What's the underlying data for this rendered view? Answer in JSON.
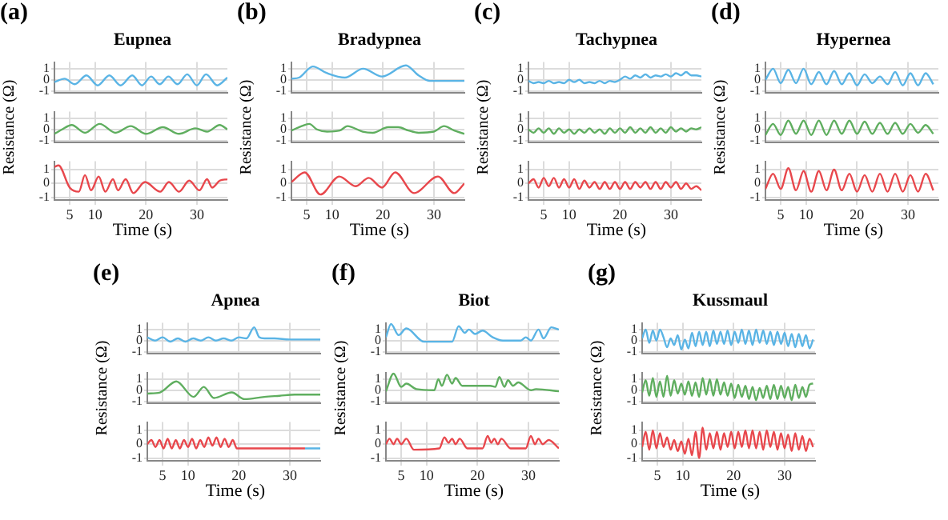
{
  "chart_data": [
    {
      "type": "line",
      "title": "Eupnea",
      "annotations": [
        "(a)"
      ],
      "x": [
        2,
        4,
        6,
        8.3,
        10.5,
        12.8,
        15,
        17.3,
        19.2,
        21,
        22.7,
        24.4,
        26.2,
        28.1,
        30,
        31.8,
        34,
        36
      ],
      "series": [
        {
          "color": "#5ab4e5",
          "values": [
            -0.2,
            0.1,
            -0.4,
            0.4,
            -0.5,
            0.4,
            -0.5,
            0.4,
            -0.5,
            0.3,
            -0.4,
            0.3,
            -0.4,
            0.5,
            -0.5,
            0.5,
            -0.5,
            0.2
          ]
        }
      ],
      "xlim": [
        2,
        36
      ],
      "xticks": [
        5,
        10,
        20,
        30
      ],
      "ylim": [
        -1.2,
        1.6
      ],
      "yticks": [
        -1,
        0,
        1
      ],
      "grid": true,
      "tick_labels": "y"
    },
    {
      "type": "line",
      "ylabel": "Resistance (Ω)",
      "x": [
        2,
        3.5,
        5.4,
        8,
        10.9,
        14,
        17,
        20,
        23.3,
        26.5,
        29.7,
        32,
        34.5,
        36
      ],
      "series": [
        {
          "color": "#5fae5f",
          "values": [
            -0.4,
            0,
            0.4,
            -0.3,
            0.5,
            -0.3,
            0.3,
            -0.4,
            0.2,
            -0.4,
            0.1,
            -0.2,
            0.4,
            0
          ]
        }
      ],
      "xlim": [
        2,
        36
      ],
      "xticks": [
        5,
        10,
        20,
        30
      ],
      "ylim": [
        -1.2,
        1.6
      ],
      "yticks": [
        -1,
        0,
        1
      ],
      "grid": true,
      "tick_labels": "y"
    },
    {
      "type": "line",
      "xlabel": "Time (s)",
      "x": [
        2,
        2.8,
        5,
        6.8,
        8,
        9.2,
        10.7,
        12,
        13.5,
        14.5,
        16,
        17.5,
        19.8,
        22.8,
        24.5,
        26.5,
        28.5,
        30.5,
        32,
        33,
        34.5,
        36
      ],
      "series": [
        {
          "color": "#e8474c",
          "values": [
            1.2,
            1.3,
            -0.3,
            -0.6,
            0.6,
            -0.5,
            0.5,
            -0.6,
            0.3,
            -0.5,
            0.3,
            -0.7,
            0.1,
            -0.6,
            0.1,
            -0.6,
            0.2,
            -0.5,
            0.3,
            -0.3,
            0.2,
            0.3
          ]
        }
      ],
      "xlim": [
        2,
        36
      ],
      "xticks": [
        5,
        10,
        20,
        30
      ],
      "ylim": [
        -1.2,
        1.6
      ],
      "yticks": [
        -1,
        0,
        1
      ],
      "grid": true
    },
    {
      "type": "line",
      "title": "Bradypnea",
      "annotations": [
        "(b)"
      ],
      "x": [
        2,
        3.5,
        6.2,
        9,
        12.5,
        16.1,
        19.8,
        24.5,
        27,
        29.2,
        32,
        36
      ],
      "series": [
        {
          "color": "#5ab4e5",
          "values": [
            0.1,
            0.2,
            1.2,
            0.6,
            0.2,
            1.0,
            0.3,
            1.3,
            0.4,
            -0.1,
            -0.1,
            -0.1
          ]
        }
      ],
      "xlim": [
        2,
        36
      ],
      "xticks": [
        5,
        10,
        20,
        30
      ],
      "ylim": [
        -1.2,
        1.6
      ],
      "yticks": [
        -1,
        0,
        1
      ],
      "grid": true,
      "tick_labels": "y"
    },
    {
      "type": "line",
      "ylabel": "Resistance (Ω)",
      "x": [
        2,
        4,
        5.5,
        7,
        9,
        11.5,
        13,
        16,
        18,
        21,
        23,
        25,
        27,
        30,
        32,
        34,
        36
      ],
      "series": [
        {
          "color": "#5fae5f",
          "values": [
            -0.1,
            0.3,
            0.5,
            0,
            -0.2,
            -0.1,
            0.3,
            -0.2,
            -0.3,
            0.2,
            0.2,
            -0.1,
            -0.3,
            -0.2,
            0.3,
            -0.1,
            -0.4
          ]
        }
      ],
      "xlim": [
        2,
        36
      ],
      "xticks": [
        5,
        10,
        20,
        30
      ],
      "ylim": [
        -1.2,
        1.6
      ],
      "yticks": [
        -1,
        0,
        1
      ],
      "grid": true,
      "tick_labels": "y"
    },
    {
      "type": "line",
      "xlabel": "Time (s)",
      "x": [
        2,
        4.6,
        7.7,
        11.4,
        14.6,
        17.2,
        19.8,
        22.4,
        26.1,
        30.8,
        34,
        36
      ],
      "series": [
        {
          "color": "#e8474c",
          "values": [
            0.1,
            0.8,
            -0.8,
            0.5,
            -0.2,
            0.4,
            -0.3,
            0.8,
            -0.7,
            0.5,
            -0.7,
            0
          ]
        }
      ],
      "xlim": [
        2,
        36
      ],
      "xticks": [
        5,
        10,
        20,
        30
      ],
      "ylim": [
        -1.2,
        1.6
      ],
      "yticks": [
        -1,
        0,
        1
      ],
      "grid": true
    },
    {
      "type": "line",
      "title": "Tachypnea",
      "annotations": [
        "(c)"
      ],
      "x": [
        2,
        3,
        4,
        5,
        6,
        7,
        8,
        9,
        10,
        11,
        12,
        13,
        14,
        15,
        16,
        17,
        18,
        19,
        20,
        21,
        22,
        23,
        24,
        25,
        26,
        27,
        28,
        29,
        30,
        31,
        32,
        33,
        34,
        35,
        36
      ],
      "series": [
        {
          "color": "#5ab4e5",
          "values": [
            -0.1,
            -0.3,
            -0.2,
            -0.3,
            -0.1,
            -0.3,
            -0.2,
            -0.3,
            0,
            -0.2,
            0,
            -0.3,
            -0.2,
            -0.3,
            -0.1,
            -0.3,
            -0.1,
            -0.2,
            0,
            0.3,
            0.1,
            0.4,
            0.2,
            0.5,
            0.2,
            0.4,
            0.3,
            0.5,
            0.3,
            0.6,
            0.4,
            0.7,
            0.4,
            0.4,
            0.3
          ]
        }
      ],
      "xlim": [
        2,
        36
      ],
      "xticks": [
        5,
        10,
        20,
        30
      ],
      "ylim": [
        -1.2,
        1.6
      ],
      "yticks": [
        -1,
        0,
        1
      ],
      "grid": true,
      "tick_labels": "y"
    },
    {
      "type": "line",
      "ylabel": "Resistance (Ω)",
      "x": [
        2,
        3,
        4,
        5,
        6,
        7,
        8,
        9,
        10,
        11,
        12,
        13,
        14,
        15,
        16,
        17,
        18,
        19,
        20,
        21,
        22,
        23,
        24,
        25,
        26,
        27,
        28,
        29,
        30,
        31,
        32,
        33,
        34,
        35,
        36
      ],
      "series": [
        {
          "color": "#5fae5f",
          "values": [
            0,
            -0.3,
            0.1,
            -0.3,
            0.1,
            -0.4,
            0.1,
            -0.3,
            0,
            -0.4,
            0,
            -0.3,
            0.1,
            -0.3,
            0,
            -0.4,
            0.1,
            -0.3,
            0.1,
            -0.3,
            0.2,
            -0.3,
            0.1,
            -0.3,
            0.2,
            -0.3,
            0.1,
            -0.3,
            0.2,
            -0.2,
            0.1,
            -0.2,
            0.1,
            0,
            0.2
          ]
        }
      ],
      "xlim": [
        2,
        36
      ],
      "xticks": [
        5,
        10,
        20,
        30
      ],
      "ylim": [
        -1.2,
        1.6
      ],
      "yticks": [
        -1,
        0,
        1
      ],
      "grid": true,
      "tick_labels": "y"
    },
    {
      "type": "line",
      "xlabel": "Time (s)",
      "x": [
        2,
        3,
        4,
        5,
        6,
        7,
        8,
        9,
        10,
        11,
        12,
        13,
        14,
        15,
        16,
        17,
        18,
        19,
        20,
        21,
        22,
        23,
        24,
        25,
        26,
        27,
        28,
        29,
        30,
        31,
        32,
        33,
        34,
        35,
        36
      ],
      "series": [
        {
          "color": "#e8474c",
          "values": [
            0,
            0.3,
            -0.3,
            0.4,
            -0.2,
            0.4,
            -0.3,
            0.3,
            -0.3,
            0.3,
            -0.4,
            0.2,
            -0.3,
            0.1,
            -0.4,
            0.1,
            -0.4,
            0.1,
            -0.4,
            0.1,
            -0.4,
            0.1,
            -0.3,
            0.1,
            -0.4,
            0.1,
            -0.4,
            0.1,
            -0.3,
            0.1,
            -0.4,
            0,
            -0.4,
            -0.2,
            -0.5
          ]
        }
      ],
      "xlim": [
        2,
        36
      ],
      "xticks": [
        5,
        10,
        20,
        30
      ],
      "ylim": [
        -1.2,
        1.6
      ],
      "yticks": [
        -1,
        0,
        1
      ],
      "grid": true
    },
    {
      "type": "line",
      "title": "Hypernea",
      "annotations": [
        "(d)"
      ],
      "x": [
        2,
        3.5,
        5,
        6.5,
        8,
        9.5,
        11,
        12.5,
        14,
        15.5,
        17,
        18.5,
        20,
        21.5,
        23,
        24.5,
        26,
        27.5,
        29,
        30.5,
        32,
        33.5,
        35
      ],
      "series": [
        {
          "color": "#5ab4e5",
          "values": [
            0,
            1,
            -0.3,
            0.9,
            -0.3,
            1,
            -0.4,
            0.7,
            -0.4,
            0.8,
            -0.4,
            0.6,
            -0.5,
            0.5,
            -0.3,
            0.3,
            -0.4,
            0.7,
            -0.5,
            0.6,
            -0.5,
            0.6,
            -0.4
          ]
        }
      ],
      "xlim": [
        2,
        36
      ],
      "xticks": [
        5,
        10,
        20,
        30
      ],
      "ylim": [
        -1.2,
        1.6
      ],
      "yticks": [
        -1,
        0,
        1
      ],
      "grid": true,
      "tick_labels": "y"
    },
    {
      "type": "line",
      "ylabel": "Resistance (Ω)",
      "x": [
        2,
        3.5,
        5,
        6.5,
        8,
        9.5,
        11,
        12.5,
        14,
        15.5,
        17,
        18.5,
        20,
        21.5,
        23,
        24.5,
        26,
        27.5,
        29,
        30.5,
        32,
        33.5,
        35
      ],
      "series": [
        {
          "color": "#5fae5f",
          "values": [
            -0.5,
            0.5,
            -0.5,
            0.8,
            -0.4,
            0.8,
            -0.5,
            0.8,
            -0.5,
            0.8,
            -0.4,
            0.8,
            -0.4,
            0.7,
            -0.4,
            0.6,
            -0.4,
            0.6,
            -0.4,
            0.5,
            -0.3,
            0.4,
            -0.4
          ]
        }
      ],
      "xlim": [
        2,
        36
      ],
      "xticks": [
        5,
        10,
        20,
        30
      ],
      "ylim": [
        -1.2,
        1.6
      ],
      "yticks": [
        -1,
        0,
        1
      ],
      "grid": true,
      "tick_labels": "y"
    },
    {
      "type": "line",
      "xlabel": "Time (s)",
      "x": [
        2,
        3.5,
        5,
        6.5,
        8,
        9.5,
        11,
        12.5,
        14,
        15.5,
        17,
        18.5,
        20,
        21.5,
        23,
        24.5,
        26,
        27.5,
        29,
        30.5,
        32,
        33.5,
        35
      ],
      "series": [
        {
          "color": "#e8474c",
          "values": [
            -0.4,
            0.7,
            -0.4,
            1.1,
            -0.5,
            0.9,
            -0.6,
            0.9,
            -0.5,
            1.0,
            -0.5,
            0.7,
            -0.6,
            0.6,
            -0.6,
            0.7,
            -0.6,
            0.7,
            -0.6,
            0.6,
            -0.6,
            0.7,
            -0.5
          ]
        }
      ],
      "xlim": [
        2,
        36
      ],
      "xticks": [
        5,
        10,
        20,
        30
      ],
      "ylim": [
        -1.2,
        1.6
      ],
      "yticks": [
        -1,
        0,
        1
      ],
      "grid": true
    },
    {
      "type": "line",
      "title": "Apnea",
      "annotations": [
        "(e)"
      ],
      "x": [
        2,
        3.5,
        5,
        6.5,
        8,
        9.5,
        11,
        12.5,
        14,
        15.5,
        17,
        18.5,
        20,
        21.5,
        23,
        24,
        25,
        27,
        30,
        33,
        36
      ],
      "series": [
        {
          "color": "#5ab4e5",
          "values": [
            0.3,
            0,
            0.3,
            -0.1,
            0.2,
            -0.1,
            0.2,
            0,
            0.3,
            0,
            0.2,
            0,
            0.3,
            0.2,
            1.2,
            0.3,
            0.2,
            0.2,
            0.1,
            0.1,
            0.1
          ]
        }
      ],
      "xlim": [
        2,
        36
      ],
      "xticks": [
        5,
        10,
        20,
        30
      ],
      "ylim": [
        -1.2,
        1.6
      ],
      "yticks": [
        -1,
        0,
        1
      ],
      "grid": true,
      "tick_labels": "y"
    },
    {
      "type": "line",
      "ylabel": "Resistance (Ω)",
      "x": [
        2,
        4.5,
        7.7,
        11.1,
        13.1,
        15.1,
        18.6,
        21.1,
        25,
        28,
        31,
        36
      ],
      "series": [
        {
          "color": "#5fae5f",
          "values": [
            -0.3,
            -0.2,
            0.8,
            -0.6,
            0.3,
            -0.7,
            -0.2,
            -0.8,
            -0.6,
            -0.5,
            -0.4,
            -0.4
          ]
        }
      ],
      "xlim": [
        2,
        36
      ],
      "xticks": [
        5,
        10,
        20,
        30
      ],
      "ylim": [
        -1.2,
        1.6
      ],
      "yticks": [
        -1,
        0,
        1
      ],
      "grid": true,
      "tick_labels": "y"
    },
    {
      "type": "line",
      "xlabel": "Time (s)",
      "x": [
        2,
        2.8,
        3.6,
        4.4,
        5.2,
        6,
        6.8,
        7.6,
        8.4,
        9.2,
        10,
        10.8,
        11.6,
        12.4,
        13.2,
        14,
        14.8,
        15.6,
        16.4,
        17.2,
        18,
        18.8,
        19.6,
        21,
        25,
        30,
        33,
        36
      ],
      "series": [
        {
          "color": "#e8474c",
          "values": [
            0,
            0.3,
            -0.2,
            0.3,
            -0.3,
            0.4,
            -0.3,
            0.3,
            -0.3,
            0.3,
            -0.2,
            0.4,
            -0.3,
            0.3,
            -0.2,
            0.5,
            -0.1,
            0.5,
            -0.2,
            0.4,
            -0.2,
            0.3,
            -0.3,
            -0.3,
            -0.3,
            -0.3,
            -0.3,
            null
          ]
        },
        {
          "color": "#5ab4e5",
          "values": [
            null,
            null,
            null,
            null,
            null,
            null,
            null,
            null,
            null,
            null,
            null,
            null,
            null,
            null,
            null,
            null,
            null,
            null,
            null,
            null,
            null,
            null,
            null,
            null,
            null,
            null,
            -0.3,
            -0.3
          ]
        }
      ],
      "xlim": [
        2,
        36
      ],
      "xticks": [
        5,
        10,
        20,
        30
      ],
      "ylim": [
        -1.2,
        1.6
      ],
      "yticks": [
        -1,
        0,
        1
      ],
      "grid": true
    },
    {
      "type": "line",
      "title": "Biot",
      "annotations": [
        "(f)"
      ],
      "x": [
        2,
        3,
        4.5,
        6,
        9.5,
        15,
        16.3,
        17.5,
        18.3,
        19.5,
        21,
        23,
        25,
        28.5,
        29.5,
        30.5,
        32,
        33,
        34.5,
        36
      ],
      "series": [
        {
          "color": "#5ab4e5",
          "values": [
            0.3,
            1.5,
            0.5,
            1.1,
            -0.1,
            -0.1,
            1.3,
            0.7,
            1.0,
            0.6,
            0.9,
            0.3,
            0,
            0,
            0.3,
            0,
            1.0,
            0.2,
            1.2,
            1.0
          ]
        }
      ],
      "xlim": [
        2,
        36
      ],
      "xticks": [
        5,
        10,
        20,
        30
      ],
      "ylim": [
        -1.2,
        1.6
      ],
      "yticks": [
        -1,
        0,
        1
      ],
      "grid": true,
      "tick_labels": "y"
    },
    {
      "type": "line",
      "ylabel": "Resistance (Ω)",
      "x": [
        2,
        3.5,
        5,
        6,
        8,
        11.5,
        12.3,
        13,
        14,
        15,
        15.7,
        17,
        22.5,
        23.5,
        24.3,
        25.3,
        26,
        27,
        28,
        30.5,
        31.5,
        36
      ],
      "series": [
        {
          "color": "#5fae5f",
          "values": [
            -0.1,
            1.5,
            0.3,
            0.6,
            0.1,
            0,
            1.0,
            0.4,
            1.4,
            0.6,
            1.1,
            0.4,
            0.4,
            0.3,
            1.2,
            0.3,
            0.9,
            0.4,
            0.7,
            0,
            0.1,
            -0.1
          ]
        }
      ],
      "xlim": [
        2,
        36
      ],
      "xticks": [
        5,
        10,
        20,
        30
      ],
      "ylim": [
        -1.2,
        1.6
      ],
      "yticks": [
        -1,
        0,
        1
      ],
      "grid": true,
      "tick_labels": "y"
    },
    {
      "type": "line",
      "xlabel": "Time (s)",
      "x": [
        2,
        2.7,
        3.5,
        4.2,
        5,
        6,
        7.5,
        12.5,
        13.5,
        14.3,
        15,
        15.7,
        16.5,
        18,
        21,
        22,
        22.7,
        23.3,
        24,
        24.7,
        26.5,
        29.5,
        30.5,
        31.3,
        32,
        32.8,
        34,
        36
      ],
      "series": [
        {
          "color": "#e8474c",
          "values": [
            0,
            0.4,
            0,
            0.4,
            0,
            0.4,
            -0.4,
            -0.3,
            0.5,
            0.1,
            0.4,
            0,
            0.4,
            -0.3,
            -0.3,
            0.6,
            0.1,
            0.4,
            0,
            0.4,
            -0.3,
            -0.3,
            0.6,
            0,
            0.4,
            0,
            0.3,
            -0.3
          ]
        }
      ],
      "xlim": [
        2,
        36
      ],
      "xticks": [
        5,
        10,
        20,
        30
      ],
      "ylim": [
        -1.2,
        1.6
      ],
      "yticks": [
        -1,
        0,
        1
      ],
      "grid": true
    },
    {
      "type": "line",
      "title": "Kussmaul",
      "annotations": [
        "(g)"
      ],
      "x": [
        2,
        2.7,
        3.4,
        4.1,
        4.8,
        5.5,
        6.2,
        6.9,
        7.6,
        8.3,
        9,
        9.7,
        10.4,
        11.1,
        11.8,
        12.5,
        13.2,
        13.9,
        14.6,
        15.3,
        16,
        16.7,
        17.4,
        18.1,
        18.8,
        19.5,
        20.2,
        20.9,
        21.6,
        22.3,
        23,
        23.7,
        24.4,
        25.1,
        25.8,
        26.5,
        27.2,
        27.9,
        28.6,
        29.3,
        30,
        30.7,
        31.4,
        32.1,
        32.8,
        33.5,
        34.2,
        34.9,
        35.6
      ],
      "series": [
        {
          "color": "#5ab4e5",
          "values": [
            0.2,
            1,
            -0.2,
            0.9,
            0,
            1,
            0.3,
            -0.6,
            0.2,
            -0.4,
            0.5,
            -0.8,
            0.1,
            -0.7,
            0.7,
            -0.5,
            0.8,
            -0.4,
            0.8,
            -0.5,
            0.9,
            -0.3,
            0.8,
            -0.3,
            0.9,
            -0.4,
            0.8,
            -0.2,
            1,
            -0.3,
            0.9,
            -0.4,
            1,
            -0.2,
            0.9,
            -0.3,
            0.8,
            -0.4,
            0.8,
            -0.3,
            0.7,
            -0.5,
            0.6,
            -0.6,
            0.6,
            -0.5,
            0.5,
            -0.7,
            0.1
          ]
        }
      ],
      "xlim": [
        2,
        36
      ],
      "xticks": [
        5,
        10,
        20,
        30
      ],
      "ylim": [
        -1.2,
        1.6
      ],
      "yticks": [
        -1,
        0,
        1
      ],
      "grid": true,
      "tick_labels": "y"
    },
    {
      "type": "line",
      "ylabel": "Resistance (Ω)",
      "x": [
        2,
        2.7,
        3.4,
        4.1,
        4.8,
        5.5,
        6.2,
        6.9,
        7.6,
        8.3,
        9,
        9.7,
        10.4,
        11.1,
        11.8,
        12.5,
        13.2,
        13.9,
        14.6,
        15.3,
        16,
        16.7,
        17.4,
        18.1,
        18.8,
        19.5,
        20.2,
        20.9,
        21.6,
        22.3,
        23,
        23.7,
        24.4,
        25.1,
        25.8,
        26.5,
        27.2,
        27.9,
        28.6,
        29.3,
        30,
        30.7,
        31.4,
        32.1,
        32.8,
        33.5,
        34.2,
        34.9,
        35.6
      ],
      "series": [
        {
          "color": "#5fae5f",
          "values": [
            -0.2,
            0.9,
            -0.5,
            1.1,
            -0.6,
            0.8,
            -0.6,
            1.3,
            -0.5,
            0.9,
            -0.3,
            0.6,
            -0.4,
            0.8,
            -0.5,
            0.7,
            -0.6,
            1.1,
            -0.4,
            1.0,
            -0.5,
            1.0,
            -0.4,
            0.7,
            -0.5,
            0.6,
            -0.7,
            0.5,
            -0.6,
            0.4,
            -0.8,
            0.3,
            -0.9,
            0.2,
            -0.7,
            0.4,
            -0.8,
            0.5,
            -0.8,
            0.4,
            -0.7,
            0.3,
            -0.9,
            0.5,
            -0.7,
            0.3,
            -0.6,
            0.5,
            0.6
          ]
        }
      ],
      "xlim": [
        2,
        36
      ],
      "xticks": [
        5,
        10,
        20,
        30
      ],
      "ylim": [
        -1.2,
        1.6
      ],
      "yticks": [
        -1,
        0,
        1
      ],
      "grid": true,
      "tick_labels": "y"
    },
    {
      "type": "line",
      "xlabel": "Time (s)",
      "x": [
        2,
        2.7,
        3.4,
        4.1,
        4.8,
        5.5,
        6.2,
        6.9,
        7.6,
        8.3,
        9,
        9.7,
        10.4,
        11.1,
        11.8,
        12.5,
        13.2,
        13.9,
        14.6,
        15.3,
        16,
        16.7,
        17.4,
        18.1,
        18.8,
        19.5,
        20.2,
        20.9,
        21.6,
        22.3,
        23,
        23.7,
        24.4,
        25.1,
        25.8,
        26.5,
        27.2,
        27.9,
        28.6,
        29.3,
        30,
        30.7,
        31.4,
        32.1,
        32.8,
        33.5,
        34.2,
        34.9,
        35.6
      ],
      "series": [
        {
          "color": "#e8474c",
          "values": [
            -0.2,
            0.9,
            -0.4,
            1.0,
            -0.3,
            0.8,
            -0.2,
            0.5,
            -0.4,
            0.3,
            -0.5,
            0.2,
            -0.7,
            0.4,
            -0.8,
            0.9,
            -1.0,
            1.2,
            -0.4,
            0.8,
            -0.3,
            0.9,
            -0.4,
            0.8,
            -0.2,
            0.9,
            -0.3,
            0.9,
            -0.2,
            1.0,
            -0.3,
            1.0,
            -0.3,
            0.9,
            -0.4,
            1.0,
            -0.2,
            0.9,
            -0.4,
            0.8,
            -0.3,
            0.7,
            -0.5,
            0.8,
            -0.4,
            0.6,
            -0.5,
            0.4,
            -0.2
          ]
        }
      ],
      "xlim": [
        2,
        36
      ],
      "xticks": [
        5,
        10,
        20,
        30
      ],
      "ylim": [
        -1.2,
        1.6
      ],
      "yticks": [
        -1,
        0,
        1
      ],
      "grid": true
    }
  ]
}
